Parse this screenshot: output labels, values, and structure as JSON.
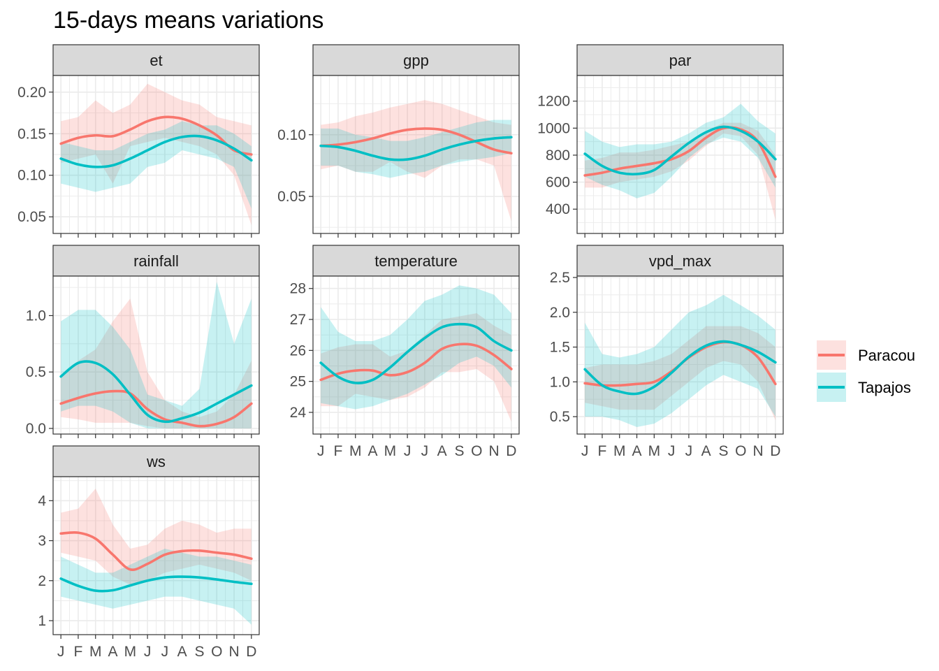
{
  "title": "15-days means variations",
  "colors": {
    "Paracou": "#F8766D",
    "Tapajos": "#00BFC4"
  },
  "legend": {
    "items": [
      "Paracou",
      "Tapajos"
    ],
    "position": "right"
  },
  "chart_data": {
    "type": "line",
    "title": "15-days means variations",
    "facets": [
      "et",
      "gpp",
      "par",
      "rainfall",
      "temperature",
      "vpd_max",
      "ws"
    ],
    "x_axis": {
      "ticks": [
        "J",
        "F",
        "M",
        "A",
        "M",
        "J",
        "J",
        "A",
        "S",
        "O",
        "N",
        "D"
      ],
      "shown_on": [
        "temperature",
        "vpd_max",
        "ws"
      ]
    },
    "x": [
      1,
      2,
      3,
      4,
      5,
      6,
      7,
      8,
      9,
      10,
      11,
      12
    ],
    "panels": [
      {
        "name": "et",
        "ylim": [
          0.03,
          0.22
        ],
        "yticks": [
          0.05,
          0.1,
          0.15,
          0.2
        ],
        "ytick_labels": [
          "0.05",
          "0.10",
          "0.15",
          "0.20"
        ],
        "series": [
          {
            "name": "Paracou",
            "values": [
              0.138,
              0.145,
              0.148,
              0.147,
              0.155,
              0.165,
              0.17,
              0.168,
              0.16,
              0.148,
              0.13,
              0.125
            ],
            "lower": [
              0.115,
              0.12,
              0.125,
              0.09,
              0.135,
              0.14,
              0.145,
              0.14,
              0.135,
              0.125,
              0.1,
              0.04
            ],
            "upper": [
              0.165,
              0.17,
              0.19,
              0.175,
              0.185,
              0.21,
              0.2,
              0.19,
              0.185,
              0.17,
              0.165,
              0.16
            ]
          },
          {
            "name": "Tapajos",
            "values": [
              0.12,
              0.113,
              0.11,
              0.112,
              0.12,
              0.13,
              0.14,
              0.146,
              0.147,
              0.142,
              0.132,
              0.118
            ],
            "lower": [
              0.09,
              0.085,
              0.08,
              0.085,
              0.09,
              0.11,
              0.115,
              0.13,
              0.125,
              0.12,
              0.11,
              0.06
            ],
            "upper": [
              0.14,
              0.135,
              0.13,
              0.13,
              0.14,
              0.15,
              0.155,
              0.165,
              0.16,
              0.16,
              0.15,
              0.135
            ]
          }
        ]
      },
      {
        "name": "gpp",
        "ylim": [
          0.02,
          0.148
        ],
        "yticks": [
          0.05,
          0.1
        ],
        "ytick_labels": [
          "0.05",
          "0.10"
        ],
        "series": [
          {
            "name": "Paracou",
            "values": [
              0.091,
              0.092,
              0.094,
              0.097,
              0.101,
              0.104,
              0.105,
              0.104,
              0.1,
              0.094,
              0.088,
              0.085
            ],
            "lower": [
              0.072,
              0.075,
              0.07,
              0.07,
              0.078,
              0.07,
              0.065,
              0.075,
              0.08,
              0.08,
              0.075,
              0.03
            ],
            "upper": [
              0.108,
              0.11,
              0.115,
              0.118,
              0.122,
              0.125,
              0.128,
              0.125,
              0.12,
              0.115,
              0.11,
              0.108
            ]
          },
          {
            "name": "Tapajos",
            "values": [
              0.091,
              0.09,
              0.087,
              0.083,
              0.08,
              0.08,
              0.083,
              0.088,
              0.092,
              0.095,
              0.097,
              0.098
            ],
            "lower": [
              0.075,
              0.075,
              0.07,
              0.068,
              0.065,
              0.068,
              0.07,
              0.075,
              0.078,
              0.08,
              0.082,
              0.085
            ],
            "upper": [
              0.105,
              0.105,
              0.1,
              0.098,
              0.095,
              0.095,
              0.098,
              0.102,
              0.106,
              0.11,
              0.112,
              0.112
            ]
          }
        ]
      },
      {
        "name": "par",
        "ylim": [
          220,
          1390
        ],
        "yticks": [
          400,
          600,
          800,
          1000,
          1200
        ],
        "ytick_labels": [
          "400",
          "600",
          "800",
          "1000",
          "1200"
        ],
        "series": [
          {
            "name": "Paracou",
            "values": [
              650,
              670,
              700,
              720,
              740,
              770,
              830,
              930,
              1000,
              990,
              900,
              640
            ],
            "lower": [
              560,
              560,
              600,
              620,
              640,
              680,
              760,
              870,
              960,
              940,
              800,
              320
            ],
            "upper": [
              760,
              780,
              820,
              820,
              840,
              870,
              900,
              980,
              1040,
              1040,
              980,
              800
            ]
          },
          {
            "name": "Tapajos",
            "values": [
              810,
              720,
              670,
              660,
              690,
              790,
              890,
              970,
              1010,
              980,
              900,
              770
            ],
            "lower": [
              640,
              580,
              540,
              480,
              520,
              640,
              780,
              880,
              930,
              900,
              780,
              560
            ],
            "upper": [
              980,
              900,
              860,
              880,
              880,
              900,
              960,
              1040,
              1080,
              1180,
              1050,
              960
            ]
          }
        ]
      },
      {
        "name": "rainfall",
        "ylim": [
          -0.05,
          1.35
        ],
        "yticks": [
          0.0,
          0.5,
          1.0
        ],
        "ytick_labels": [
          "0.0",
          "0.5",
          "1.0"
        ],
        "series": [
          {
            "name": "Paracou",
            "values": [
              0.22,
              0.27,
              0.31,
              0.33,
              0.31,
              0.17,
              0.08,
              0.05,
              0.02,
              0.04,
              0.1,
              0.22
            ],
            "lower": [
              0.1,
              0.08,
              0.05,
              0.05,
              0.05,
              0.02,
              0.0,
              0.0,
              0.0,
              0.0,
              0.0,
              0.0
            ],
            "upper": [
              0.45,
              0.6,
              0.7,
              0.95,
              1.15,
              0.5,
              0.25,
              0.15,
              0.1,
              0.15,
              0.3,
              0.6
            ]
          },
          {
            "name": "Tapajos",
            "values": [
              0.46,
              0.58,
              0.58,
              0.48,
              0.3,
              0.12,
              0.06,
              0.09,
              0.14,
              0.22,
              0.3,
              0.38
            ],
            "lower": [
              0.15,
              0.2,
              0.2,
              0.15,
              0.05,
              0.0,
              0.0,
              0.0,
              0.0,
              0.0,
              0.0,
              0.0
            ],
            "upper": [
              0.95,
              1.05,
              1.05,
              0.9,
              0.7,
              0.3,
              0.25,
              0.2,
              0.35,
              1.3,
              0.75,
              1.15
            ]
          }
        ]
      },
      {
        "name": "temperature",
        "ylim": [
          23.3,
          28.4
        ],
        "yticks": [
          24,
          25,
          26,
          27,
          28
        ],
        "ytick_labels": [
          "24",
          "25",
          "26",
          "27",
          "28"
        ],
        "series": [
          {
            "name": "Paracou",
            "values": [
              25.05,
              25.25,
              25.35,
              25.35,
              25.2,
              25.3,
              25.6,
              26.05,
              26.2,
              26.15,
              25.85,
              25.4
            ],
            "lower": [
              24.2,
              24.2,
              24.6,
              24.5,
              24.4,
              24.5,
              24.8,
              25.3,
              25.3,
              25.4,
              25.0,
              23.7
            ],
            "upper": [
              25.9,
              26.1,
              26.2,
              26.2,
              25.8,
              26.0,
              26.5,
              27.0,
              27.1,
              27.2,
              26.8,
              26.5
            ]
          },
          {
            "name": "Tapajos",
            "values": [
              25.6,
              25.15,
              24.95,
              25.05,
              25.45,
              25.95,
              26.4,
              26.75,
              26.85,
              26.75,
              26.3,
              26.0
            ],
            "lower": [
              24.3,
              24.2,
              24.1,
              24.2,
              24.4,
              24.6,
              24.9,
              25.2,
              25.6,
              25.8,
              25.5,
              24.8
            ],
            "upper": [
              27.4,
              26.6,
              26.3,
              26.3,
              26.5,
              27.0,
              27.6,
              27.8,
              28.1,
              28.0,
              27.8,
              27.2
            ]
          }
        ]
      },
      {
        "name": "vpd_max",
        "ylim": [
          0.25,
          2.52
        ],
        "yticks": [
          0.5,
          1.0,
          1.5,
          2.0,
          2.5
        ],
        "ytick_labels": [
          "0.5",
          "1.0",
          "1.5",
          "2.0",
          "2.5"
        ],
        "series": [
          {
            "name": "Paracou",
            "values": [
              0.98,
              0.95,
              0.95,
              0.97,
              1.0,
              1.15,
              1.35,
              1.5,
              1.57,
              1.53,
              1.35,
              0.97
            ],
            "lower": [
              0.7,
              0.65,
              0.6,
              0.6,
              0.6,
              0.8,
              1.0,
              1.2,
              1.3,
              1.25,
              1.0,
              0.45
            ],
            "upper": [
              1.2,
              1.25,
              1.25,
              1.25,
              1.3,
              1.4,
              1.6,
              1.8,
              1.8,
              1.8,
              1.7,
              1.5
            ]
          },
          {
            "name": "Tapajos",
            "values": [
              1.18,
              0.95,
              0.86,
              0.83,
              0.93,
              1.13,
              1.36,
              1.52,
              1.58,
              1.53,
              1.43,
              1.28
            ],
            "lower": [
              0.5,
              0.5,
              0.45,
              0.35,
              0.4,
              0.55,
              0.75,
              0.95,
              1.1,
              1.0,
              0.9,
              0.5
            ],
            "upper": [
              1.85,
              1.4,
              1.35,
              1.4,
              1.5,
              1.75,
              2.0,
              2.1,
              2.25,
              2.1,
              1.95,
              1.75
            ]
          }
        ]
      },
      {
        "name": "ws",
        "ylim": [
          0.65,
          4.6
        ],
        "yticks": [
          1,
          2,
          3,
          4
        ],
        "ytick_labels": [
          "1",
          "2",
          "3",
          "4"
        ],
        "series": [
          {
            "name": "Paracou",
            "values": [
              3.18,
              3.2,
              3.05,
              2.65,
              2.28,
              2.42,
              2.65,
              2.74,
              2.75,
              2.7,
              2.65,
              2.55
            ],
            "lower": [
              2.7,
              2.6,
              2.5,
              2.1,
              1.9,
              2.0,
              2.2,
              2.3,
              2.4,
              2.3,
              2.2,
              2.0
            ],
            "upper": [
              3.7,
              3.8,
              4.3,
              3.4,
              2.8,
              2.9,
              3.3,
              3.5,
              3.4,
              3.2,
              3.3,
              3.3
            ]
          },
          {
            "name": "Tapajos",
            "values": [
              2.05,
              1.87,
              1.75,
              1.76,
              1.88,
              2.0,
              2.08,
              2.1,
              2.08,
              2.03,
              1.97,
              1.92
            ],
            "lower": [
              1.6,
              1.5,
              1.4,
              1.3,
              1.4,
              1.5,
              1.6,
              1.6,
              1.5,
              1.4,
              1.3,
              0.9
            ],
            "upper": [
              2.6,
              2.4,
              2.2,
              2.2,
              2.4,
              2.6,
              2.8,
              2.7,
              2.6,
              2.6,
              2.5,
              2.4
            ]
          }
        ]
      }
    ]
  }
}
